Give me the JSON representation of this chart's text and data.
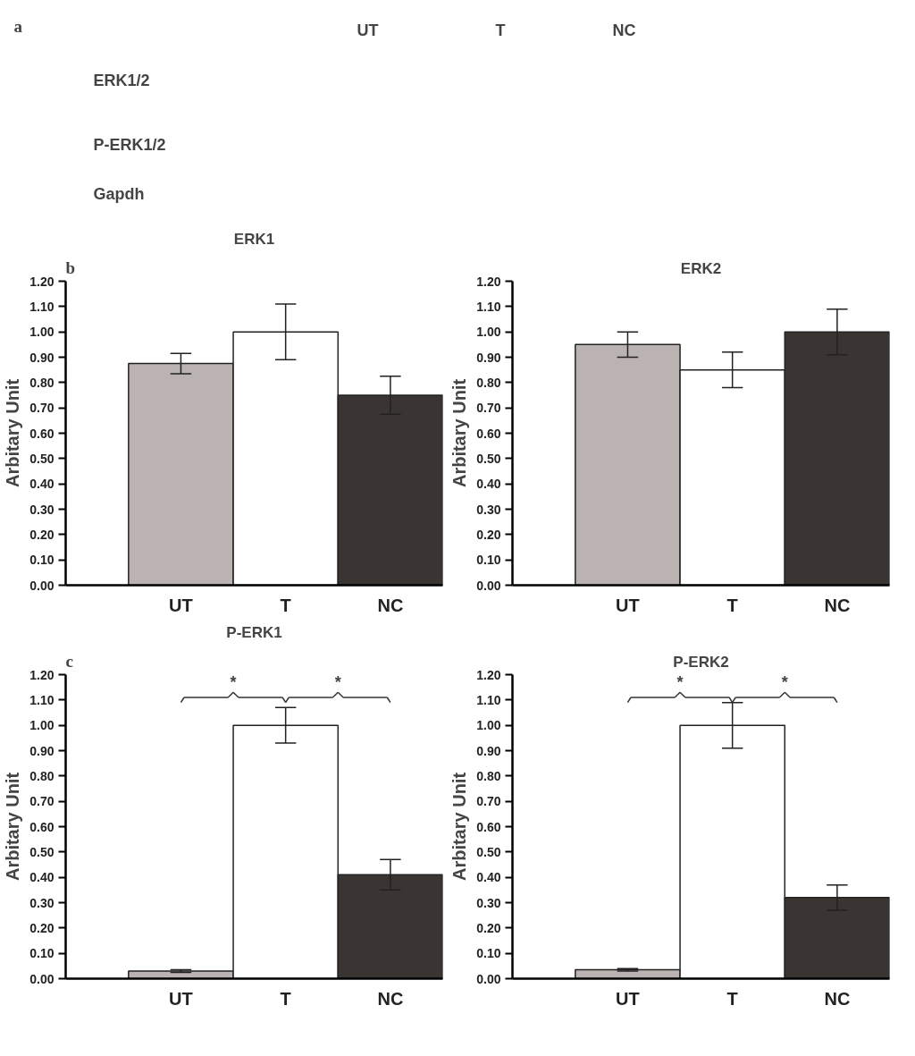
{
  "chart_data": [
    {
      "type": "other",
      "annotations": [
        "a",
        "UT",
        "T",
        "NC",
        "ERK1/2",
        "P-ERK1/2",
        "Gapdh"
      ]
    },
    {
      "type": "bar",
      "title": "ERK1",
      "ylabel": "Arbitary Unit",
      "categories": [
        "UT",
        "T",
        "NC"
      ],
      "values": [
        0.875,
        1.0,
        0.75
      ],
      "colors": [
        "#bab3b1",
        "#ffffff",
        "#3a3532"
      ],
      "errors": [
        0.04,
        0.11,
        0.075
      ],
      "ylim": [
        0,
        1.2
      ],
      "yticks": [
        {
          "value": 0,
          "label": "0.00"
        },
        {
          "value": 0.1,
          "label": "0.10"
        },
        {
          "value": 0.2,
          "label": "0.20"
        },
        {
          "value": 0.3,
          "label": "0.30"
        },
        {
          "value": 0.4,
          "label": "0.40"
        },
        {
          "value": 0.5,
          "label": "0.50"
        },
        {
          "value": 0.6,
          "label": "0.60"
        },
        {
          "value": 0.7,
          "label": "0.70"
        },
        {
          "value": 0.8,
          "label": "0.80"
        },
        {
          "value": 0.9,
          "label": "0.90"
        },
        {
          "value": 1.0,
          "label": "1.00"
        },
        {
          "value": 1.1,
          "label": "1.10"
        },
        {
          "value": 1.2,
          "label": "1.20"
        }
      ],
      "annotations": [
        "b"
      ]
    },
    {
      "type": "bar",
      "title": "ERK2",
      "ylabel": "Arbitary Unit",
      "categories": [
        "UT",
        "T",
        "NC"
      ],
      "values": [
        0.95,
        0.85,
        1.0
      ],
      "colors": [
        "#bab3b1",
        "#ffffff",
        "#3a3532"
      ],
      "errors": [
        0.05,
        0.07,
        0.09
      ],
      "ylim": [
        0,
        1.2
      ],
      "yticks": [
        {
          "value": 0,
          "label": "0.00"
        },
        {
          "value": 0.1,
          "label": "0.10"
        },
        {
          "value": 0.2,
          "label": "0.20"
        },
        {
          "value": 0.3,
          "label": "0.30"
        },
        {
          "value": 0.4,
          "label": "0.40"
        },
        {
          "value": 0.5,
          "label": "0.50"
        },
        {
          "value": 0.6,
          "label": "0.60"
        },
        {
          "value": 0.7,
          "label": "0.70"
        },
        {
          "value": 0.8,
          "label": "0.80"
        },
        {
          "value": 0.9,
          "label": "0.90"
        },
        {
          "value": 1.0,
          "label": "1.00"
        },
        {
          "value": 1.1,
          "label": "1.10"
        },
        {
          "value": 1.2,
          "label": "1.20"
        }
      ]
    },
    {
      "type": "bar",
      "title": "P-ERK1",
      "ylabel": "Arbitary Unit",
      "categories": [
        "UT",
        "T",
        "NC"
      ],
      "values": [
        0.03,
        1.0,
        0.41
      ],
      "colors": [
        "#bab3b1",
        "#ffffff",
        "#3a3532"
      ],
      "errors": [
        0.005,
        0.07,
        0.06
      ],
      "ylim": [
        0,
        1.2
      ],
      "yticks": [
        {
          "value": 0,
          "label": "0.00"
        },
        {
          "value": 0.1,
          "label": "0.10"
        },
        {
          "value": 0.2,
          "label": "0.20"
        },
        {
          "value": 0.3,
          "label": "0.30"
        },
        {
          "value": 0.4,
          "label": "0.40"
        },
        {
          "value": 0.5,
          "label": "0.50"
        },
        {
          "value": 0.6,
          "label": "0.60"
        },
        {
          "value": 0.7,
          "label": "0.70"
        },
        {
          "value": 0.8,
          "label": "0.80"
        },
        {
          "value": 0.9,
          "label": "0.90"
        },
        {
          "value": 1.0,
          "label": "1.00"
        },
        {
          "value": 1.1,
          "label": "1.10"
        },
        {
          "value": 1.2,
          "label": "1.20"
        }
      ],
      "annotations": [
        "c",
        "*",
        "*"
      ]
    },
    {
      "type": "bar",
      "title": "P-ERK2",
      "ylabel": "Arbitary Unit",
      "categories": [
        "UT",
        "T",
        "NC"
      ],
      "values": [
        0.035,
        1.0,
        0.32
      ],
      "colors": [
        "#bab3b1",
        "#ffffff",
        "#3a3532"
      ],
      "errors": [
        0.005,
        0.09,
        0.05
      ],
      "ylim": [
        0,
        1.2
      ],
      "yticks": [
        {
          "value": 0,
          "label": "0.00"
        },
        {
          "value": 0.1,
          "label": "0.10"
        },
        {
          "value": 0.2,
          "label": "0.20"
        },
        {
          "value": 0.3,
          "label": "0.30"
        },
        {
          "value": 0.4,
          "label": "0.40"
        },
        {
          "value": 0.5,
          "label": "0.50"
        },
        {
          "value": 0.6,
          "label": "0.60"
        },
        {
          "value": 0.7,
          "label": "0.70"
        },
        {
          "value": 0.8,
          "label": "0.80"
        },
        {
          "value": 0.9,
          "label": "0.90"
        },
        {
          "value": 1.0,
          "label": "1.00"
        },
        {
          "value": 1.1,
          "label": "1.10"
        },
        {
          "value": 1.2,
          "label": "1.20"
        }
      ],
      "annotations": [
        "*",
        "*"
      ]
    }
  ]
}
